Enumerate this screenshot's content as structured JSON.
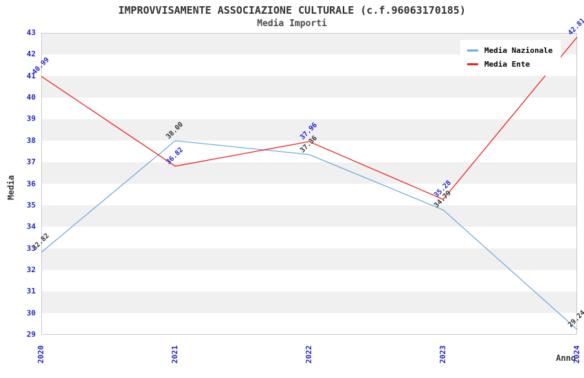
{
  "header": {
    "title": "IMPROVVISAMENTE ASSOCIAZIONE CULTURALE (c.f.96063170185)",
    "subtitle": "Media Importi"
  },
  "chart_data": {
    "type": "line",
    "categories": [
      "2020",
      "2021",
      "2022",
      "2023",
      "2024"
    ],
    "series": [
      {
        "name": "Media Nazionale",
        "values": [
          32.82,
          38.0,
          37.36,
          34.79,
          29.24
        ],
        "color": "#72abde",
        "label_color": "#333333"
      },
      {
        "name": "Media Ente",
        "values": [
          40.99,
          36.82,
          37.96,
          35.28,
          42.81
        ],
        "color": "#ee2222",
        "label_color": "#2424cc"
      }
    ],
    "title": "IMPROVVISAMENTE ASSOCIAZIONE CULTURALE (c.f.96063170185)",
    "subtitle": "Media Importi",
    "xlabel": "Anno",
    "ylabel": "Media",
    "ylim": [
      29,
      43
    ],
    "ytick_step": 1,
    "grid": true,
    "legend_position": "top-right",
    "band_colors": [
      "#f0f0f0",
      "#ffffff"
    ],
    "tick_color": "#2424cc",
    "axis_color": "#c8c8c8",
    "title_color": "#333333"
  }
}
